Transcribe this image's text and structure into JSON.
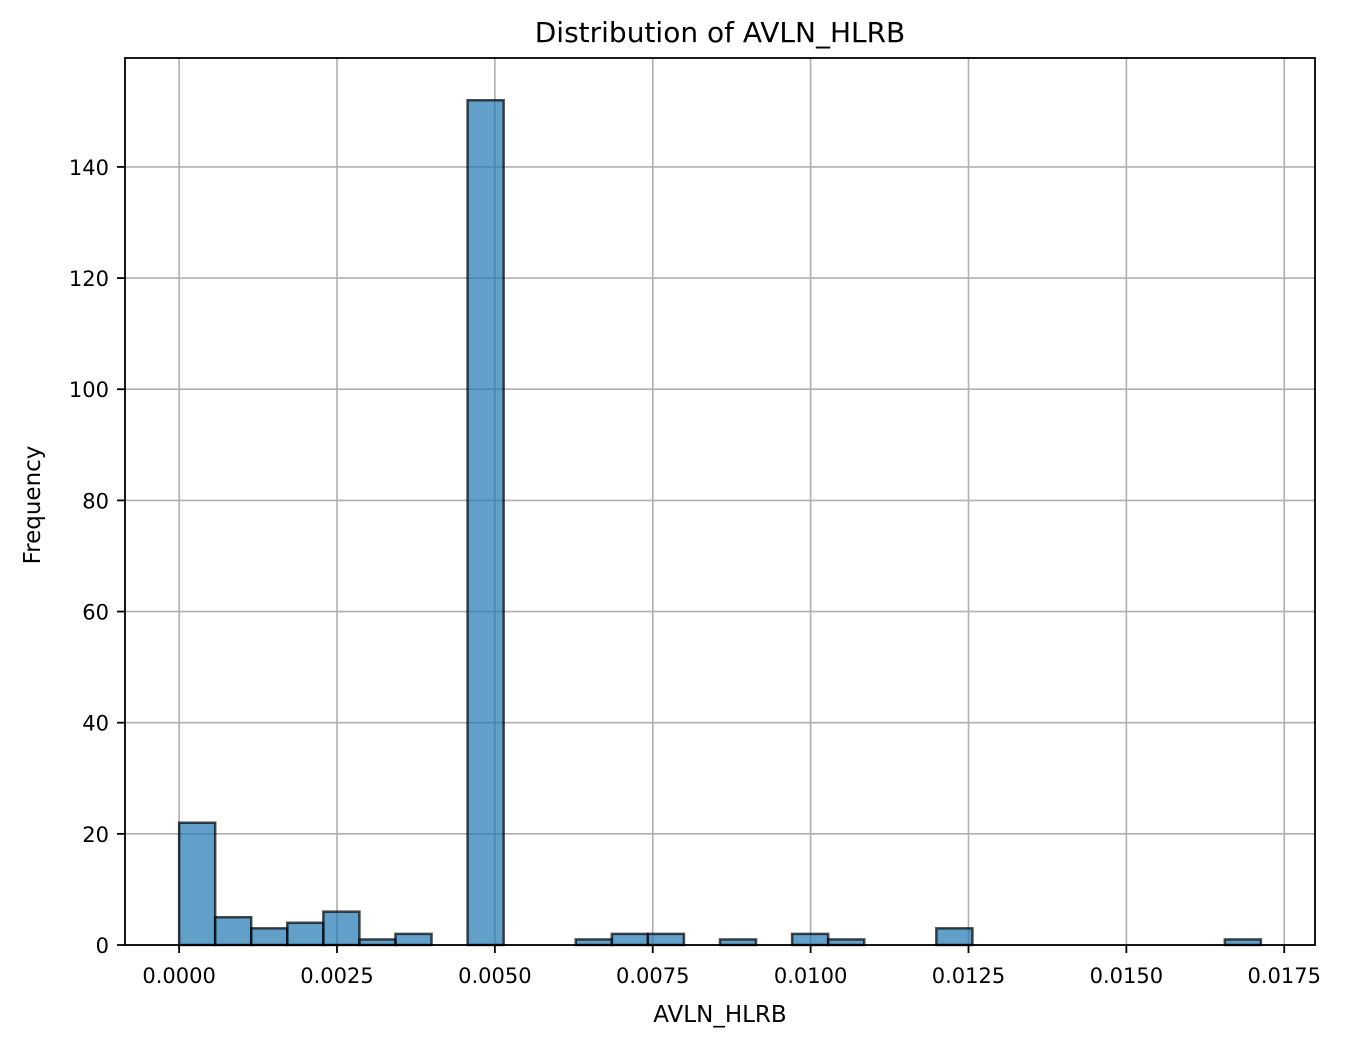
{
  "chart_data": {
    "type": "bar",
    "subtype": "histogram",
    "title": "Distribution of AVLN_HLRB",
    "xlabel": "AVLN_HLRB",
    "ylabel": "Frequency",
    "bin_start": 0.0,
    "bin_width": 0.000571,
    "bins": 30,
    "values": [
      22,
      5,
      3,
      4,
      6,
      1,
      2,
      0,
      152,
      0,
      0,
      1,
      2,
      2,
      0,
      1,
      0,
      2,
      1,
      0,
      0,
      3,
      0,
      0,
      0,
      0,
      0,
      0,
      0,
      1
    ],
    "xlim": [
      -0.000857,
      0.017987
    ],
    "ylim": [
      0,
      159.6
    ],
    "x_ticks": [
      0.0,
      0.0025,
      0.005,
      0.0075,
      0.01,
      0.0125,
      0.015,
      0.0175
    ],
    "x_tick_labels": [
      "0.0000",
      "0.0025",
      "0.0050",
      "0.0075",
      "0.0100",
      "0.0125",
      "0.0150",
      "0.0175"
    ],
    "y_ticks": [
      0,
      20,
      40,
      60,
      80,
      100,
      120,
      140
    ],
    "y_tick_labels": [
      "0",
      "20",
      "40",
      "60",
      "80",
      "100",
      "120",
      "140"
    ],
    "grid": true,
    "colors": {
      "bar_fill": "#1f77b4",
      "bar_fill_opacity": 0.7,
      "bar_edge": "#000000",
      "grid": "#b0b0b0",
      "axes": "#000000",
      "background": "#ffffff"
    }
  }
}
